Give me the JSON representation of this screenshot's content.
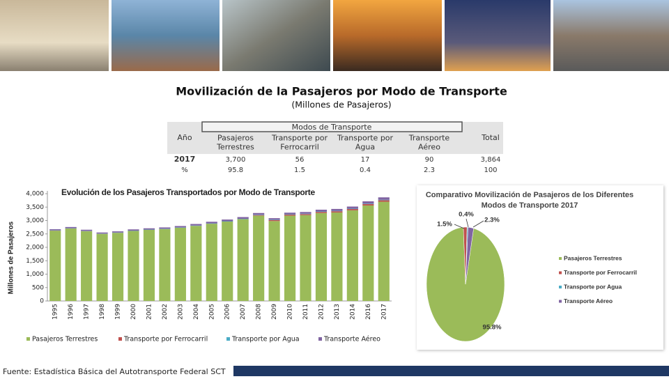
{
  "title": "Movilización de la Pasajeros por Modo de Transporte",
  "subtitle": "(Millones de Pasajeros)",
  "table": {
    "group_header": "Modos de Transporte",
    "headers": [
      "Año",
      "Pasajeros Terrestres",
      "Transporte por Ferrocarril",
      "Transporte por Agua",
      "Transporte Aéreo",
      "Total"
    ],
    "rows": [
      [
        "2017",
        "3,700",
        "56",
        "17",
        "90",
        "3,864"
      ],
      [
        "%",
        "95.8",
        "1.5",
        "0.4",
        "2.3",
        "100"
      ]
    ]
  },
  "chart_data": [
    {
      "type": "stacked_bar",
      "title": "Evolución de los Pasajeros Transportados por Modo de Transporte",
      "y_label": "Millones de Pasajeros",
      "categories": [
        "1995",
        "1996",
        "1997",
        "1998",
        "1999",
        "2000",
        "2001",
        "2002",
        "2003",
        "2004",
        "2005",
        "2006",
        "2007",
        "2008",
        "2009",
        "2010",
        "2011",
        "2012",
        "2013",
        "2014",
        "2016",
        "2017"
      ],
      "series": [
        {
          "name": "Pasajeros Terrestres",
          "color": "#9bbb59",
          "values": [
            2620,
            2700,
            2600,
            2500,
            2540,
            2610,
            2650,
            2680,
            2730,
            2800,
            2880,
            2960,
            3050,
            3180,
            2980,
            3180,
            3200,
            3280,
            3300,
            3380,
            3560,
            3700
          ]
        },
        {
          "name": "Transporte por Ferrocarril",
          "color": "#c0504d",
          "values": [
            7,
            6,
            5,
            3,
            2,
            1,
            1,
            1,
            1,
            1,
            1,
            1,
            1,
            20,
            35,
            38,
            40,
            42,
            46,
            48,
            52,
            56
          ]
        },
        {
          "name": "Transporte por Agua",
          "color": "#4bacc6",
          "values": [
            8,
            9,
            9,
            9,
            10,
            10,
            10,
            11,
            11,
            12,
            12,
            13,
            13,
            14,
            14,
            14,
            15,
            15,
            15,
            16,
            17,
            17
          ]
        },
        {
          "name": "Transporte Aéreo",
          "color": "#8064a2",
          "values": [
            40,
            42,
            42,
            41,
            44,
            48,
            48,
            50,
            52,
            57,
            60,
            62,
            64,
            65,
            58,
            60,
            62,
            66,
            70,
            76,
            86,
            90
          ]
        }
      ],
      "ylim": [
        0,
        4000
      ],
      "yticks": [
        0,
        500,
        {
          "value": 1000,
          "label": "1,000"
        },
        {
          "value": 1500,
          "label": "1,500"
        },
        {
          "value": 2000,
          "label": "2,000"
        },
        {
          "value": 2500,
          "label": "2,500"
        },
        {
          "value": 3000,
          "label": "3,000"
        },
        {
          "value": 3500,
          "label": "3,500"
        },
        {
          "value": 4000,
          "label": "4,000"
        }
      ]
    },
    {
      "type": "pie",
      "title": [
        "Comparativo Movilización de Pasajeros de los Diferentes",
        "Modos de Transporte 2017"
      ],
      "categories": [
        "Pasajeros Terrestres",
        "Transporte por Ferrocarril",
        "Transporte por Agua",
        "Transporte Aéreo"
      ],
      "values": [
        95.8,
        1.5,
        0.4,
        2.3
      ],
      "value_labels": [
        "95.8%",
        "1.5%",
        "0.4%",
        "2.3%"
      ],
      "colors": [
        "#9bbb59",
        "#c0504d",
        "#4bacc6",
        "#8064a2"
      ]
    }
  ],
  "source": "Fuente: Estadística Básica del Autotransporte Federal SCT"
}
